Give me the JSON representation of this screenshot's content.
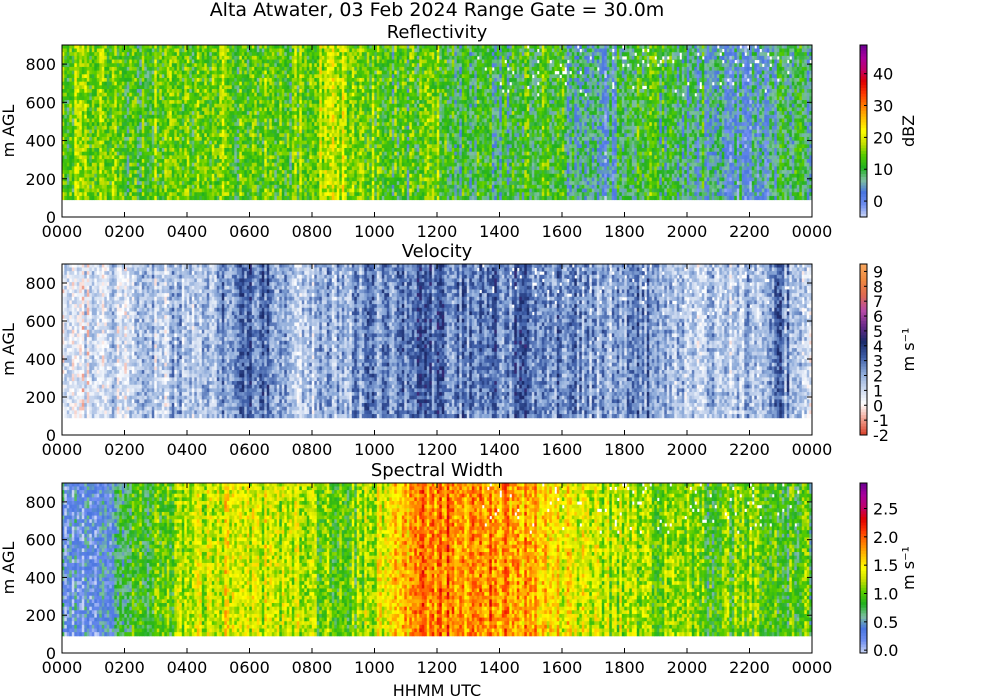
{
  "suptitle": "Alta Atwater, 03 Feb 2024 Range Gate = 30.0m",
  "xlabel": "HHMM UTC",
  "chart_data": [
    {
      "type": "heatmap",
      "title": "Reflectivity",
      "ylabel": "m AGL",
      "xticks": [
        "0000",
        "0200",
        "0400",
        "0600",
        "0800",
        "1000",
        "1200",
        "1400",
        "1600",
        "1800",
        "2000",
        "2200",
        "0000"
      ],
      "yticks": [
        "0",
        "200",
        "400",
        "600",
        "800"
      ],
      "ylim": [
        0,
        900
      ],
      "data_height_range": [
        90,
        900
      ],
      "colorbar_label": "dBZ",
      "colorbar_ticks": [
        "0",
        "10",
        "20",
        "30",
        "40"
      ],
      "colorbar_range": [
        -5,
        49
      ],
      "colormap": [
        "#c8d4f5",
        "#6f8ef0",
        "#4a76e0",
        "#7ec0a0",
        "#20b020",
        "#55cc00",
        "#c8e000",
        "#ffff00",
        "#ffc000",
        "#ff8000",
        "#ff3a00",
        "#e00000",
        "#c0006a",
        "#a8009e",
        "#6a0090"
      ],
      "hourly_mean": [
        14,
        15,
        16,
        13,
        12,
        12,
        15,
        14,
        13,
        12,
        15,
        13,
        14,
        13,
        12,
        16,
        17,
        18,
        17,
        16,
        14,
        11,
        13,
        14,
        13,
        10,
        11,
        8,
        9,
        12,
        11,
        13,
        8,
        5,
        3,
        9,
        10,
        12,
        9,
        6,
        8,
        7,
        5,
        4,
        3,
        7,
        9,
        6
      ]
    },
    {
      "type": "heatmap",
      "title": "Velocity",
      "ylabel": "m s⁻¹",
      "ylabel_left": "m AGL",
      "xticks": [
        "0000",
        "0200",
        "0400",
        "0600",
        "0800",
        "1000",
        "1200",
        "1400",
        "1600",
        "1800",
        "2000",
        "2200",
        "0000"
      ],
      "yticks": [
        "0",
        "200",
        "400",
        "600",
        "800"
      ],
      "ylim": [
        0,
        900
      ],
      "data_height_range": [
        90,
        900
      ],
      "colorbar_label": "m s⁻¹",
      "colorbar_ticks": [
        "-2",
        "-1",
        "0",
        "1",
        "2",
        "3",
        "4",
        "5",
        "6",
        "7",
        "8",
        "9"
      ],
      "colorbar_range": [
        -2,
        9.5
      ],
      "colormap": [
        "#d8402a",
        "#f0a090",
        "#ffffff",
        "#c8d6ee",
        "#8aa8d8",
        "#3e5ea8",
        "#1a2a6a",
        "#6a2a8a",
        "#b84aa8",
        "#e06a50",
        "#f08a40",
        "#f8a860"
      ],
      "hourly_mean": [
        0.6,
        0.7,
        0.8,
        1.0,
        1.1,
        1.3,
        1.4,
        1.6,
        1.6,
        1.9,
        2.3,
        2.7,
        2.9,
        2.6,
        2.2,
        1.8,
        1.6,
        1.9,
        2.1,
        2.3,
        2.5,
        2.4,
        2.9,
        3.1,
        2.8,
        2.6,
        2.9,
        3.0,
        2.7,
        2.9,
        2.5,
        2.6,
        2.4,
        2.0,
        1.8,
        2.1,
        2.4,
        2.5,
        1.9,
        1.7,
        1.6,
        1.4,
        1.5,
        2.1,
        1.7,
        2.9,
        1.6,
        1.2
      ]
    },
    {
      "type": "heatmap",
      "title": "Spectral Width",
      "ylabel": "m s⁻¹",
      "ylabel_left": "m AGL",
      "xticks": [
        "0000",
        "0200",
        "0400",
        "0600",
        "0800",
        "1000",
        "1200",
        "1400",
        "1600",
        "1800",
        "2000",
        "2200",
        "0000"
      ],
      "yticks": [
        "0",
        "200",
        "400",
        "600",
        "800"
      ],
      "ylim": [
        0,
        900
      ],
      "data_height_range": [
        90,
        900
      ],
      "colorbar_label": "m s⁻¹",
      "colorbar_ticks": [
        "0.0",
        "0.5",
        "1.0",
        "1.5",
        "2.0",
        "2.5"
      ],
      "colorbar_range": [
        -0.05,
        2.95
      ],
      "colormap": [
        "#c8d4f5",
        "#6f8ef0",
        "#4a76e0",
        "#7ec0a0",
        "#20b020",
        "#55cc00",
        "#c8e000",
        "#ffff00",
        "#ffc000",
        "#ff8000",
        "#ff3a00",
        "#e00000",
        "#c0006a",
        "#a8009e",
        "#6a0090"
      ],
      "hourly_mean": [
        0.35,
        0.3,
        0.3,
        0.35,
        0.8,
        0.9,
        1.0,
        1.1,
        1.2,
        1.3,
        1.4,
        1.4,
        1.3,
        1.3,
        1.2,
        1.2,
        1.1,
        1.0,
        1.0,
        1.2,
        1.4,
        1.6,
        1.8,
        1.9,
        1.9,
        1.8,
        1.8,
        1.9,
        1.8,
        1.7,
        1.6,
        1.5,
        1.4,
        1.3,
        1.2,
        1.2,
        1.1,
        1.0,
        1.2,
        1.1,
        1.0,
        0.9,
        1.0,
        1.1,
        0.9,
        1.0,
        0.9,
        0.9
      ]
    }
  ]
}
